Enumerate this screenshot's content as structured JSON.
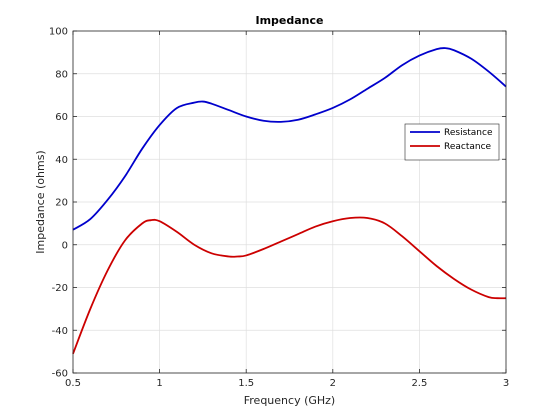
{
  "chart_data": {
    "type": "line",
    "title": "Impedance",
    "xlabel": "Frequency (GHz)",
    "ylabel": "Impedance (ohms)",
    "xlim": [
      0.5,
      3
    ],
    "ylim": [
      -60,
      100
    ],
    "xticks": [
      0.5,
      1,
      1.5,
      2,
      2.5,
      3
    ],
    "xtick_labels": [
      "0.5",
      "1",
      "1.5",
      "2",
      "2.5",
      "3"
    ],
    "yticks": [
      -60,
      -40,
      -20,
      0,
      20,
      40,
      60,
      80,
      100
    ],
    "ytick_labels": [
      "-60",
      "-40",
      "-20",
      "0",
      "20",
      "40",
      "60",
      "80",
      "100"
    ],
    "grid": true,
    "legend_position": "right",
    "series": [
      {
        "name": "Resistance",
        "color": "#0000cc",
        "x": [
          0.5,
          0.6,
          0.7,
          0.8,
          0.9,
          1.0,
          1.1,
          1.2,
          1.25,
          1.3,
          1.4,
          1.5,
          1.6,
          1.7,
          1.8,
          1.9,
          2.0,
          2.1,
          2.2,
          2.3,
          2.4,
          2.5,
          2.6,
          2.65,
          2.7,
          2.8,
          2.9,
          3.0
        ],
        "values": [
          7,
          12,
          21,
          32,
          45,
          56,
          64,
          66.5,
          67,
          66,
          63,
          60,
          58,
          57.5,
          58.5,
          61,
          64,
          68,
          73,
          78,
          84,
          88.5,
          91.5,
          92,
          91,
          87,
          81,
          74
        ]
      },
      {
        "name": "Reactance",
        "color": "#cc0000",
        "x": [
          0.5,
          0.6,
          0.7,
          0.8,
          0.9,
          0.95,
          1.0,
          1.1,
          1.2,
          1.3,
          1.4,
          1.45,
          1.5,
          1.6,
          1.7,
          1.8,
          1.9,
          2.0,
          2.1,
          2.2,
          2.3,
          2.4,
          2.5,
          2.6,
          2.7,
          2.8,
          2.9,
          2.95,
          3.0
        ],
        "values": [
          -51,
          -30,
          -12,
          2,
          10,
          11.5,
          11,
          6,
          0,
          -4,
          -5.5,
          -5.5,
          -5,
          -2,
          1.5,
          5,
          8.5,
          11,
          12.5,
          12.5,
          10,
          4,
          -3,
          -10,
          -16,
          -21,
          -24.5,
          -25,
          -25
        ]
      }
    ]
  }
}
